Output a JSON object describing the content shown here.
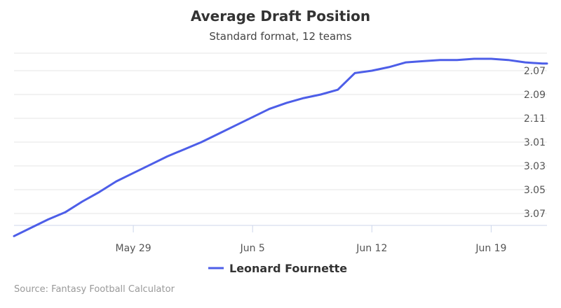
{
  "chart_data": {
    "type": "line",
    "title": "Average Draft Position",
    "subtitle": "Standard format, 12 teams",
    "xlabel": "",
    "ylabel": "",
    "x_tick_labels": [
      "May 29",
      "Jun 5",
      "Jun 12",
      "Jun 19"
    ],
    "y_tick_labels": [
      "2.07",
      "2.09",
      "2.11",
      "3.01",
      "3.03",
      "3.05",
      "3.07"
    ],
    "y_reversed": true,
    "y_unit": "overall pick (12-team league)",
    "ylim": [
      17.2,
      32.0
    ],
    "grid": true,
    "legend_position": "bottom-center",
    "series": [
      {
        "name": "Leonard Fournette",
        "color": "#4d5ee8",
        "x": [
          "May 22",
          "May 23",
          "May 24",
          "May 25",
          "May 26",
          "May 27",
          "May 28",
          "May 29",
          "May 30",
          "May 31",
          "Jun 1",
          "Jun 2",
          "Jun 3",
          "Jun 4",
          "Jun 5",
          "Jun 6",
          "Jun 7",
          "Jun 8",
          "Jun 9",
          "Jun 10",
          "Jun 11",
          "Jun 12",
          "Jun 13",
          "Jun 14",
          "Jun 15",
          "Jun 16",
          "Jun 17",
          "Jun 18",
          "Jun 19",
          "Jun 20",
          "Jun 21",
          "Jun 22",
          "Jun 23",
          "Jun 24",
          "Jun 25"
        ],
        "values": [
          31.9,
          31.2,
          30.5,
          29.9,
          29.0,
          28.2,
          27.3,
          26.6,
          25.9,
          25.2,
          24.6,
          24.0,
          23.3,
          22.6,
          21.9,
          21.2,
          20.7,
          20.3,
          20.0,
          19.6,
          18.2,
          18.0,
          17.7,
          17.3,
          17.2,
          17.1,
          17.1,
          17.0,
          17.0,
          17.1,
          17.3,
          17.4,
          17.4,
          17.4,
          17.4
        ]
      }
    ]
  },
  "legend": {
    "label": "Leonard Fournette"
  },
  "credits": "Source: Fantasy Football Calculator"
}
